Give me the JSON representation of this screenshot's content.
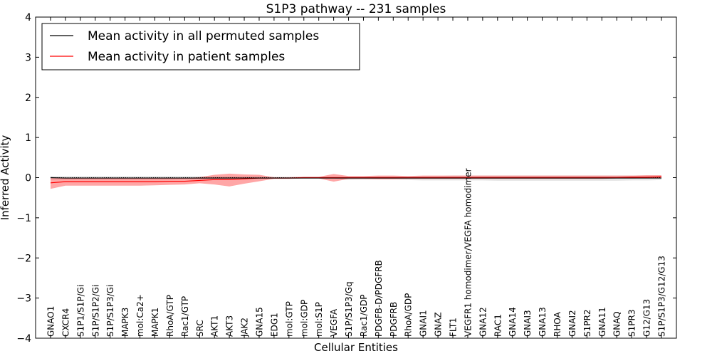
{
  "chart_data": {
    "type": "line",
    "title": "S1P3 pathway -- 231 samples",
    "xlabel": "Cellular Entities",
    "ylabel": "Inferred Activity",
    "ylim": [
      -4,
      4
    ],
    "yticks": [
      -4,
      -3,
      -2,
      -1,
      0,
      1,
      2,
      3,
      4
    ],
    "ytick_labels": [
      "−4",
      "−3",
      "−2",
      "−1",
      "0",
      "1",
      "2",
      "3",
      "4"
    ],
    "legend_position": "top-left",
    "categories": [
      "GNAO1",
      "CXCR4",
      "S1P1/S1P/Gi",
      "S1P/S1P2/Gi",
      "S1P/S1P3/Gi",
      "MAPK3",
      "mol:Ca2+",
      "MAPK1",
      "RhoA/GTP",
      "Rac1/GTP",
      "SRC",
      "AKT1",
      "AKT3",
      "JAK2",
      "GNA15",
      "EDG1",
      "mol:GTP",
      "mol:GDP",
      "mol:S1P",
      "VEGFA",
      "S1P/S1P3/Gq",
      "Rac1/GDP",
      "PDGFB-D/PDGFRB",
      "PDGFRB",
      "RhoA/GDP",
      "GNAI1",
      "GNAZ",
      "FLT1",
      "VEGFR1 homodimer/VEGFA homodimer",
      "GNA12",
      "RAC1",
      "GNA14",
      "GNAI3",
      "GNA13",
      "RHOA",
      "GNAI2",
      "S1PR2",
      "GNA11",
      "GNAQ",
      "S1PR3",
      "G12/G13",
      "S1P/S1P3/G12/G13"
    ],
    "series": [
      {
        "name": "Mean activity in all permuted samples",
        "color": "#000000",
        "values": [
          0.0,
          -0.01,
          -0.01,
          -0.01,
          -0.01,
          -0.01,
          -0.01,
          -0.01,
          -0.01,
          -0.01,
          -0.01,
          -0.01,
          -0.01,
          -0.01,
          -0.01,
          -0.01,
          -0.01,
          -0.01,
          -0.01,
          -0.01,
          -0.01,
          -0.01,
          -0.01,
          -0.01,
          -0.01,
          -0.01,
          -0.01,
          -0.01,
          -0.01,
          -0.01,
          -0.01,
          -0.01,
          -0.01,
          -0.01,
          -0.01,
          -0.01,
          -0.01,
          -0.01,
          -0.01,
          -0.01,
          -0.01,
          -0.01
        ],
        "band_low": [
          -0.05,
          -0.05,
          -0.05,
          -0.05,
          -0.05,
          -0.05,
          -0.05,
          -0.05,
          -0.05,
          -0.04,
          -0.04,
          -0.04,
          -0.04,
          -0.04,
          -0.03,
          -0.02,
          -0.02,
          -0.02,
          -0.02,
          -0.02,
          -0.06,
          -0.05,
          -0.04,
          -0.04,
          -0.06,
          -0.07,
          -0.07,
          -0.07,
          -0.07,
          -0.07,
          -0.08,
          -0.08,
          -0.08,
          -0.08,
          -0.08,
          -0.08,
          -0.08,
          -0.08,
          -0.08,
          -0.07,
          -0.07,
          -0.06
        ],
        "band_high": [
          0.04,
          0.04,
          0.04,
          0.04,
          0.04,
          0.04,
          0.04,
          0.04,
          0.04,
          0.04,
          0.04,
          0.03,
          0.03,
          0.03,
          0.03,
          0.02,
          0.02,
          0.02,
          0.02,
          0.02,
          0.02,
          0.02,
          0.03,
          0.03,
          0.03,
          0.04,
          0.04,
          0.05,
          0.05,
          0.05,
          0.05,
          0.05,
          0.05,
          0.05,
          0.05,
          0.05,
          0.05,
          0.05,
          0.05,
          0.05,
          0.05,
          0.05
        ]
      },
      {
        "name": "Mean activity in patient samples",
        "color": "#ff0000",
        "values": [
          -0.13,
          -0.1,
          -0.1,
          -0.1,
          -0.1,
          -0.1,
          -0.1,
          -0.1,
          -0.09,
          -0.09,
          -0.07,
          -0.05,
          -0.05,
          -0.03,
          -0.01,
          -0.01,
          -0.01,
          0.0,
          0.0,
          0.0,
          0.0,
          0.0,
          0.0,
          0.0,
          0.0,
          0.0,
          0.0,
          0.0,
          0.0,
          0.0,
          0.0,
          0.0,
          0.0,
          0.0,
          0.0,
          0.0,
          0.0,
          0.0,
          0.0,
          0.01,
          0.01,
          0.02
        ],
        "band_low": [
          -0.28,
          -0.2,
          -0.2,
          -0.2,
          -0.2,
          -0.2,
          -0.2,
          -0.19,
          -0.18,
          -0.17,
          -0.14,
          -0.17,
          -0.22,
          -0.15,
          -0.09,
          -0.03,
          -0.03,
          -0.02,
          -0.02,
          -0.1,
          -0.03,
          -0.03,
          -0.04,
          -0.04,
          -0.03,
          -0.03,
          -0.03,
          -0.03,
          -0.03,
          -0.03,
          -0.03,
          -0.03,
          -0.03,
          -0.03,
          -0.03,
          -0.03,
          -0.03,
          -0.03,
          -0.02,
          -0.02,
          -0.01,
          -0.01
        ],
        "band_high": [
          0.0,
          0.0,
          0.0,
          0.0,
          0.0,
          -0.01,
          -0.01,
          -0.01,
          -0.01,
          -0.01,
          0.01,
          0.07,
          0.1,
          0.08,
          0.07,
          0.01,
          0.01,
          0.02,
          0.02,
          0.09,
          0.04,
          0.04,
          0.05,
          0.05,
          0.04,
          0.05,
          0.05,
          0.05,
          0.05,
          0.05,
          0.05,
          0.05,
          0.05,
          0.05,
          0.05,
          0.05,
          0.05,
          0.05,
          0.05,
          0.05,
          0.06,
          0.06
        ]
      }
    ],
    "zero_reference_line": 0
  }
}
